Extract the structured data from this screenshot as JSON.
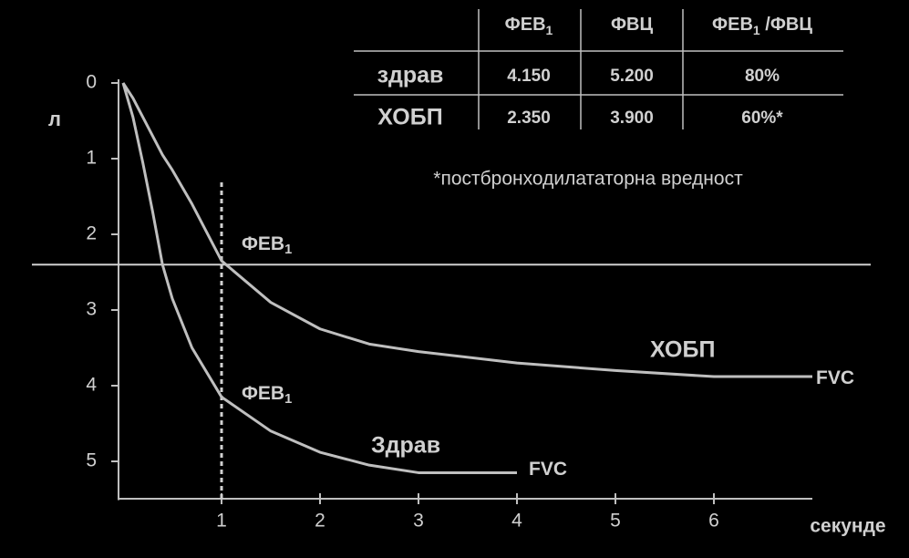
{
  "chart_data": {
    "type": "line",
    "x": [
      0,
      0.1,
      0.2,
      0.3,
      0.4,
      0.5,
      0.7,
      1,
      1.5,
      2,
      2.5,
      3,
      4,
      5,
      6,
      7
    ],
    "series": [
      {
        "name": "Здрав",
        "color": "#bfbfbf",
        "values": [
          0,
          0.45,
          1.05,
          1.7,
          2.4,
          2.85,
          3.5,
          4.15,
          4.6,
          4.88,
          5.05,
          5.15,
          5.15,
          null,
          null,
          null
        ]
      },
      {
        "name": "ХОБП",
        "color": "#bfbfbf",
        "values": [
          0,
          0.2,
          0.45,
          0.7,
          0.95,
          1.15,
          1.6,
          2.35,
          2.9,
          3.25,
          3.45,
          3.55,
          3.7,
          3.8,
          3.88,
          3.88
        ]
      }
    ],
    "xlim": [
      0,
      7
    ],
    "xticks": [
      1,
      2,
      3,
      4,
      5,
      6
    ],
    "ylim": [
      0,
      5.5
    ],
    "yticks": [
      0,
      1,
      2,
      3,
      4,
      5
    ],
    "y_inverted": true,
    "x_label": "секунде",
    "y_label": "л",
    "hline": 2.4,
    "vline": 1,
    "annotations": [
      {
        "text": "ФЕВ",
        "sub": "1"
      },
      {
        "text": "ФЕВ",
        "sub": "1"
      },
      {
        "text": "FVC"
      },
      {
        "text": "FVC"
      }
    ],
    "footnote": "*постбронходилататорна вредност",
    "table": {
      "header": [
        {
          "text": "ФЕВ",
          "sub": "1"
        },
        {
          "text": "ФВЦ"
        },
        {
          "text": "ФЕВ",
          "sub": "1",
          "rest": " /ФВЦ"
        }
      ],
      "rows": [
        [
          "здрав",
          "4.150",
          "5.200",
          "80%"
        ],
        [
          "ХОБП",
          "2.350",
          "3.900",
          "60%*"
        ]
      ]
    }
  }
}
